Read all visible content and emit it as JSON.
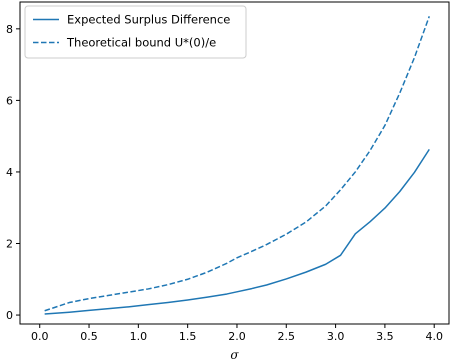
{
  "chart_data": {
    "type": "line",
    "xlabel": "σ",
    "ylabel": "",
    "xlim": [
      -0.2,
      4.15
    ],
    "ylim": [
      -0.25,
      8.75
    ],
    "xticks": [
      0.0,
      0.5,
      1.0,
      1.5,
      2.0,
      2.5,
      3.0,
      3.5,
      4.0
    ],
    "yticks": [
      0,
      2,
      4,
      6,
      8
    ],
    "xtick_labels": [
      "0.0",
      "0.5",
      "1.0",
      "1.5",
      "2.0",
      "2.5",
      "3.0",
      "3.5",
      "4.0"
    ],
    "ytick_labels": [
      "0",
      "2",
      "4",
      "6",
      "8"
    ],
    "grid": false,
    "legend_placement": "top-left",
    "series_color": "#1f77b4",
    "series": [
      {
        "name": "Expected Surplus Difference",
        "style": "solid",
        "x": [
          0.05,
          0.3,
          0.5,
          0.7,
          0.9,
          1.1,
          1.3,
          1.5,
          1.7,
          1.9,
          2.0,
          2.15,
          2.3,
          2.5,
          2.7,
          2.9,
          3.05,
          3.2,
          3.35,
          3.5,
          3.65,
          3.8,
          3.95
        ],
        "y": [
          0.03,
          0.08,
          0.13,
          0.18,
          0.23,
          0.29,
          0.35,
          0.42,
          0.5,
          0.59,
          0.65,
          0.74,
          0.84,
          1.01,
          1.2,
          1.42,
          1.67,
          2.27,
          2.61,
          2.99,
          3.45,
          3.99,
          4.63
        ]
      },
      {
        "name": "Theoretical bound U*(0)/e",
        "style": "dashed",
        "x": [
          0.05,
          0.3,
          0.5,
          0.7,
          0.9,
          1.1,
          1.3,
          1.5,
          1.7,
          1.9,
          2.0,
          2.15,
          2.3,
          2.5,
          2.7,
          2.9,
          3.05,
          3.2,
          3.35,
          3.5,
          3.65,
          3.8,
          3.95
        ],
        "y": [
          0.12,
          0.35,
          0.46,
          0.55,
          0.64,
          0.73,
          0.85,
          1.0,
          1.2,
          1.45,
          1.6,
          1.78,
          1.97,
          2.26,
          2.6,
          3.05,
          3.5,
          4.0,
          4.6,
          5.3,
          6.2,
          7.2,
          8.35
        ]
      }
    ]
  }
}
